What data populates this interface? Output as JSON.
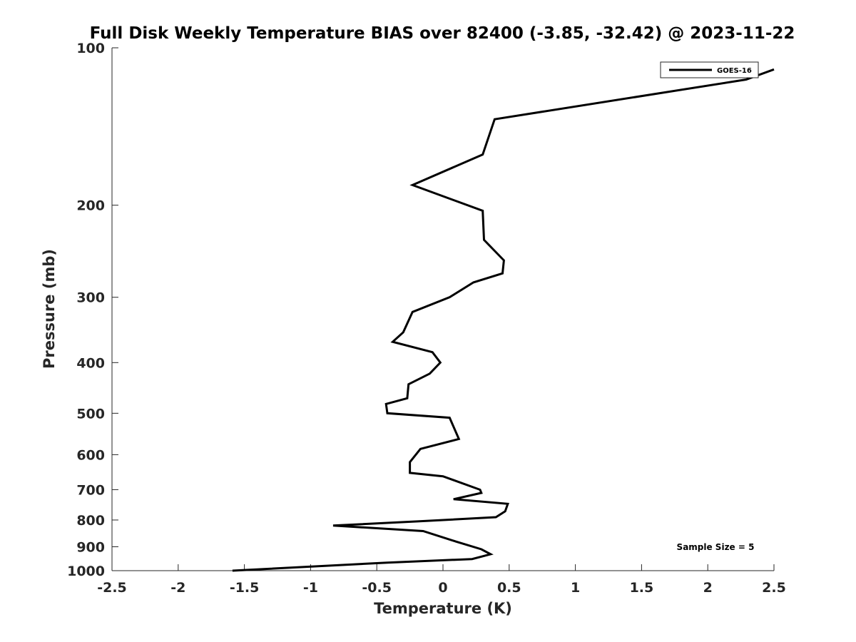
{
  "chart_data": {
    "type": "line",
    "title": "Full Disk Weekly Temperature BIAS over 82400 (-3.85, -32.42) @ 2023-11-22",
    "xlabel": "Temperature (K)",
    "ylabel": "Pressure (mb)",
    "xlim": [
      -2.5,
      2.5
    ],
    "ylim": [
      100,
      1000
    ],
    "y_scale": "log",
    "y_reversed": true,
    "grid": false,
    "legend_position": "top-right",
    "x_ticks": [
      -2.5,
      -2,
      -1.5,
      -1,
      -0.5,
      0,
      0.5,
      1,
      1.5,
      2,
      2.5
    ],
    "x_tick_labels": [
      "-2.5",
      "-2",
      "-1.5",
      "-1",
      "-0.5",
      "0",
      "0.5",
      "1",
      "1.5",
      "2",
      "2.5"
    ],
    "y_ticks": [
      100,
      200,
      300,
      400,
      500,
      600,
      700,
      800,
      900,
      1000
    ],
    "y_tick_labels": [
      "100",
      "200",
      "300",
      "400",
      "500",
      "600",
      "700",
      "800",
      "900",
      "1000"
    ],
    "annotation": "Sample Size = 5",
    "series": [
      {
        "name": "GOES-16",
        "color": "#000000",
        "x": [
          2.5,
          2.29,
          0.39,
          0.3,
          -0.23,
          0.3,
          0.31,
          0.46,
          0.45,
          0.23,
          0.05,
          -0.23,
          -0.3,
          -0.38,
          -0.08,
          -0.02,
          -0.1,
          -0.26,
          -0.27,
          -0.43,
          -0.42,
          0.05,
          0.12,
          -0.17,
          -0.25,
          -0.25,
          0.0,
          0.28,
          0.29,
          0.08,
          0.49,
          0.47,
          0.4,
          -0.19,
          -0.83,
          -0.15,
          0.1,
          0.29,
          0.36,
          0.22,
          -0.42,
          -1.59
        ],
        "y": [
          110,
          115,
          137,
          160,
          183,
          205,
          233,
          255,
          270,
          281,
          300,
          320,
          350,
          365,
          382,
          400,
          420,
          440,
          468,
          480,
          500,
          510,
          560,
          585,
          620,
          650,
          660,
          700,
          710,
          730,
          745,
          770,
          790,
          805,
          820,
          840,
          880,
          910,
          930,
          950,
          965,
          1000
        ]
      }
    ]
  }
}
